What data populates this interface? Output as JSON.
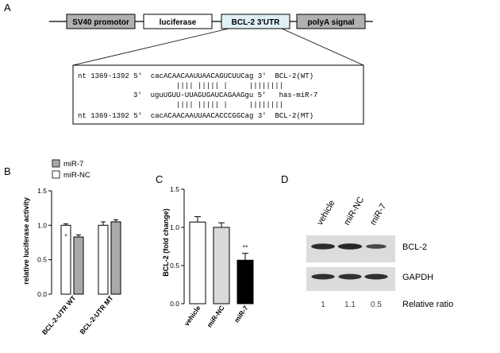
{
  "panel_labels": {
    "a": "A",
    "b": "B",
    "c": "C",
    "d": "D"
  },
  "construct": {
    "segments": [
      "SV40 promotor",
      "luciferase",
      "BCL-2 3'UTR",
      "polyA signal"
    ],
    "segment_colors": [
      "#b0b0b0",
      "#ffffff",
      "#dff0f6",
      "#b0b0b0"
    ]
  },
  "alignment": {
    "rows": [
      "nt 1369-1392 5'  cacACAACAAUUAACAGUCUUCag 3'  BCL-2(WT)",
      "|||| ||||| |     ||||||||",
      "3'  uguUGUU-UUAGUGAUCAGAAGgu 5'   has-miR-7",
      "|||| ||||| |     ||||||||",
      "nt 1369-1392 5'  cacACAACAAUUAACACCCGGCag 3'  BCL-2(MT)"
    ]
  },
  "chart_data": [
    {
      "panel": "B",
      "type": "bar",
      "ylabel": "relative luciferase activity",
      "ylim": [
        0.0,
        1.5
      ],
      "yticks": [
        "0.0",
        "0.5",
        "1.0",
        "1.5"
      ],
      "categories": [
        "BCL-2-UTR WT",
        "BCL-2-UTR MT"
      ],
      "series": [
        {
          "name": "miR-NC",
          "values": [
            1.0,
            1.0
          ],
          "errors": [
            0.02,
            0.05
          ],
          "color": "#ffffff"
        },
        {
          "name": "miR-7",
          "values": [
            0.83,
            1.05
          ],
          "errors": [
            0.03,
            0.03
          ],
          "color": "#a9a9a9"
        }
      ],
      "legend": [
        "miR-7",
        "miR-NC"
      ],
      "legend_colors": [
        "#a9a9a9",
        "#ffffff"
      ],
      "annotations": [
        {
          "text": "*",
          "category": "BCL-2-UTR WT"
        }
      ]
    },
    {
      "panel": "C",
      "type": "bar",
      "ylabel": "BCL-2 (fold change)",
      "ylim": [
        0.0,
        1.5
      ],
      "yticks": [
        "0.0",
        "0.5",
        "1.0",
        "1.5"
      ],
      "categories": [
        "vehicle",
        "miR-NC",
        "miR-7"
      ],
      "values": [
        1.07,
        1.0,
        0.57
      ],
      "errors": [
        0.07,
        0.06,
        0.09
      ],
      "colors": [
        "#ffffff",
        "#d9d9d9",
        "#000000"
      ],
      "annotations": [
        {
          "text": "**",
          "category": "miR-7"
        }
      ]
    }
  ],
  "western": {
    "lanes": [
      "vehicle",
      "miR-NC",
      "miR-7"
    ],
    "bands": [
      "BCL-2",
      "GAPDH"
    ],
    "band_intensity": {
      "BCL-2": [
        0.85,
        0.9,
        0.55
      ],
      "GAPDH": [
        0.8,
        0.8,
        0.8
      ]
    },
    "ratio_values": [
      "1",
      "1.1",
      "0.5"
    ],
    "ratio_label": "Relative ratio"
  }
}
